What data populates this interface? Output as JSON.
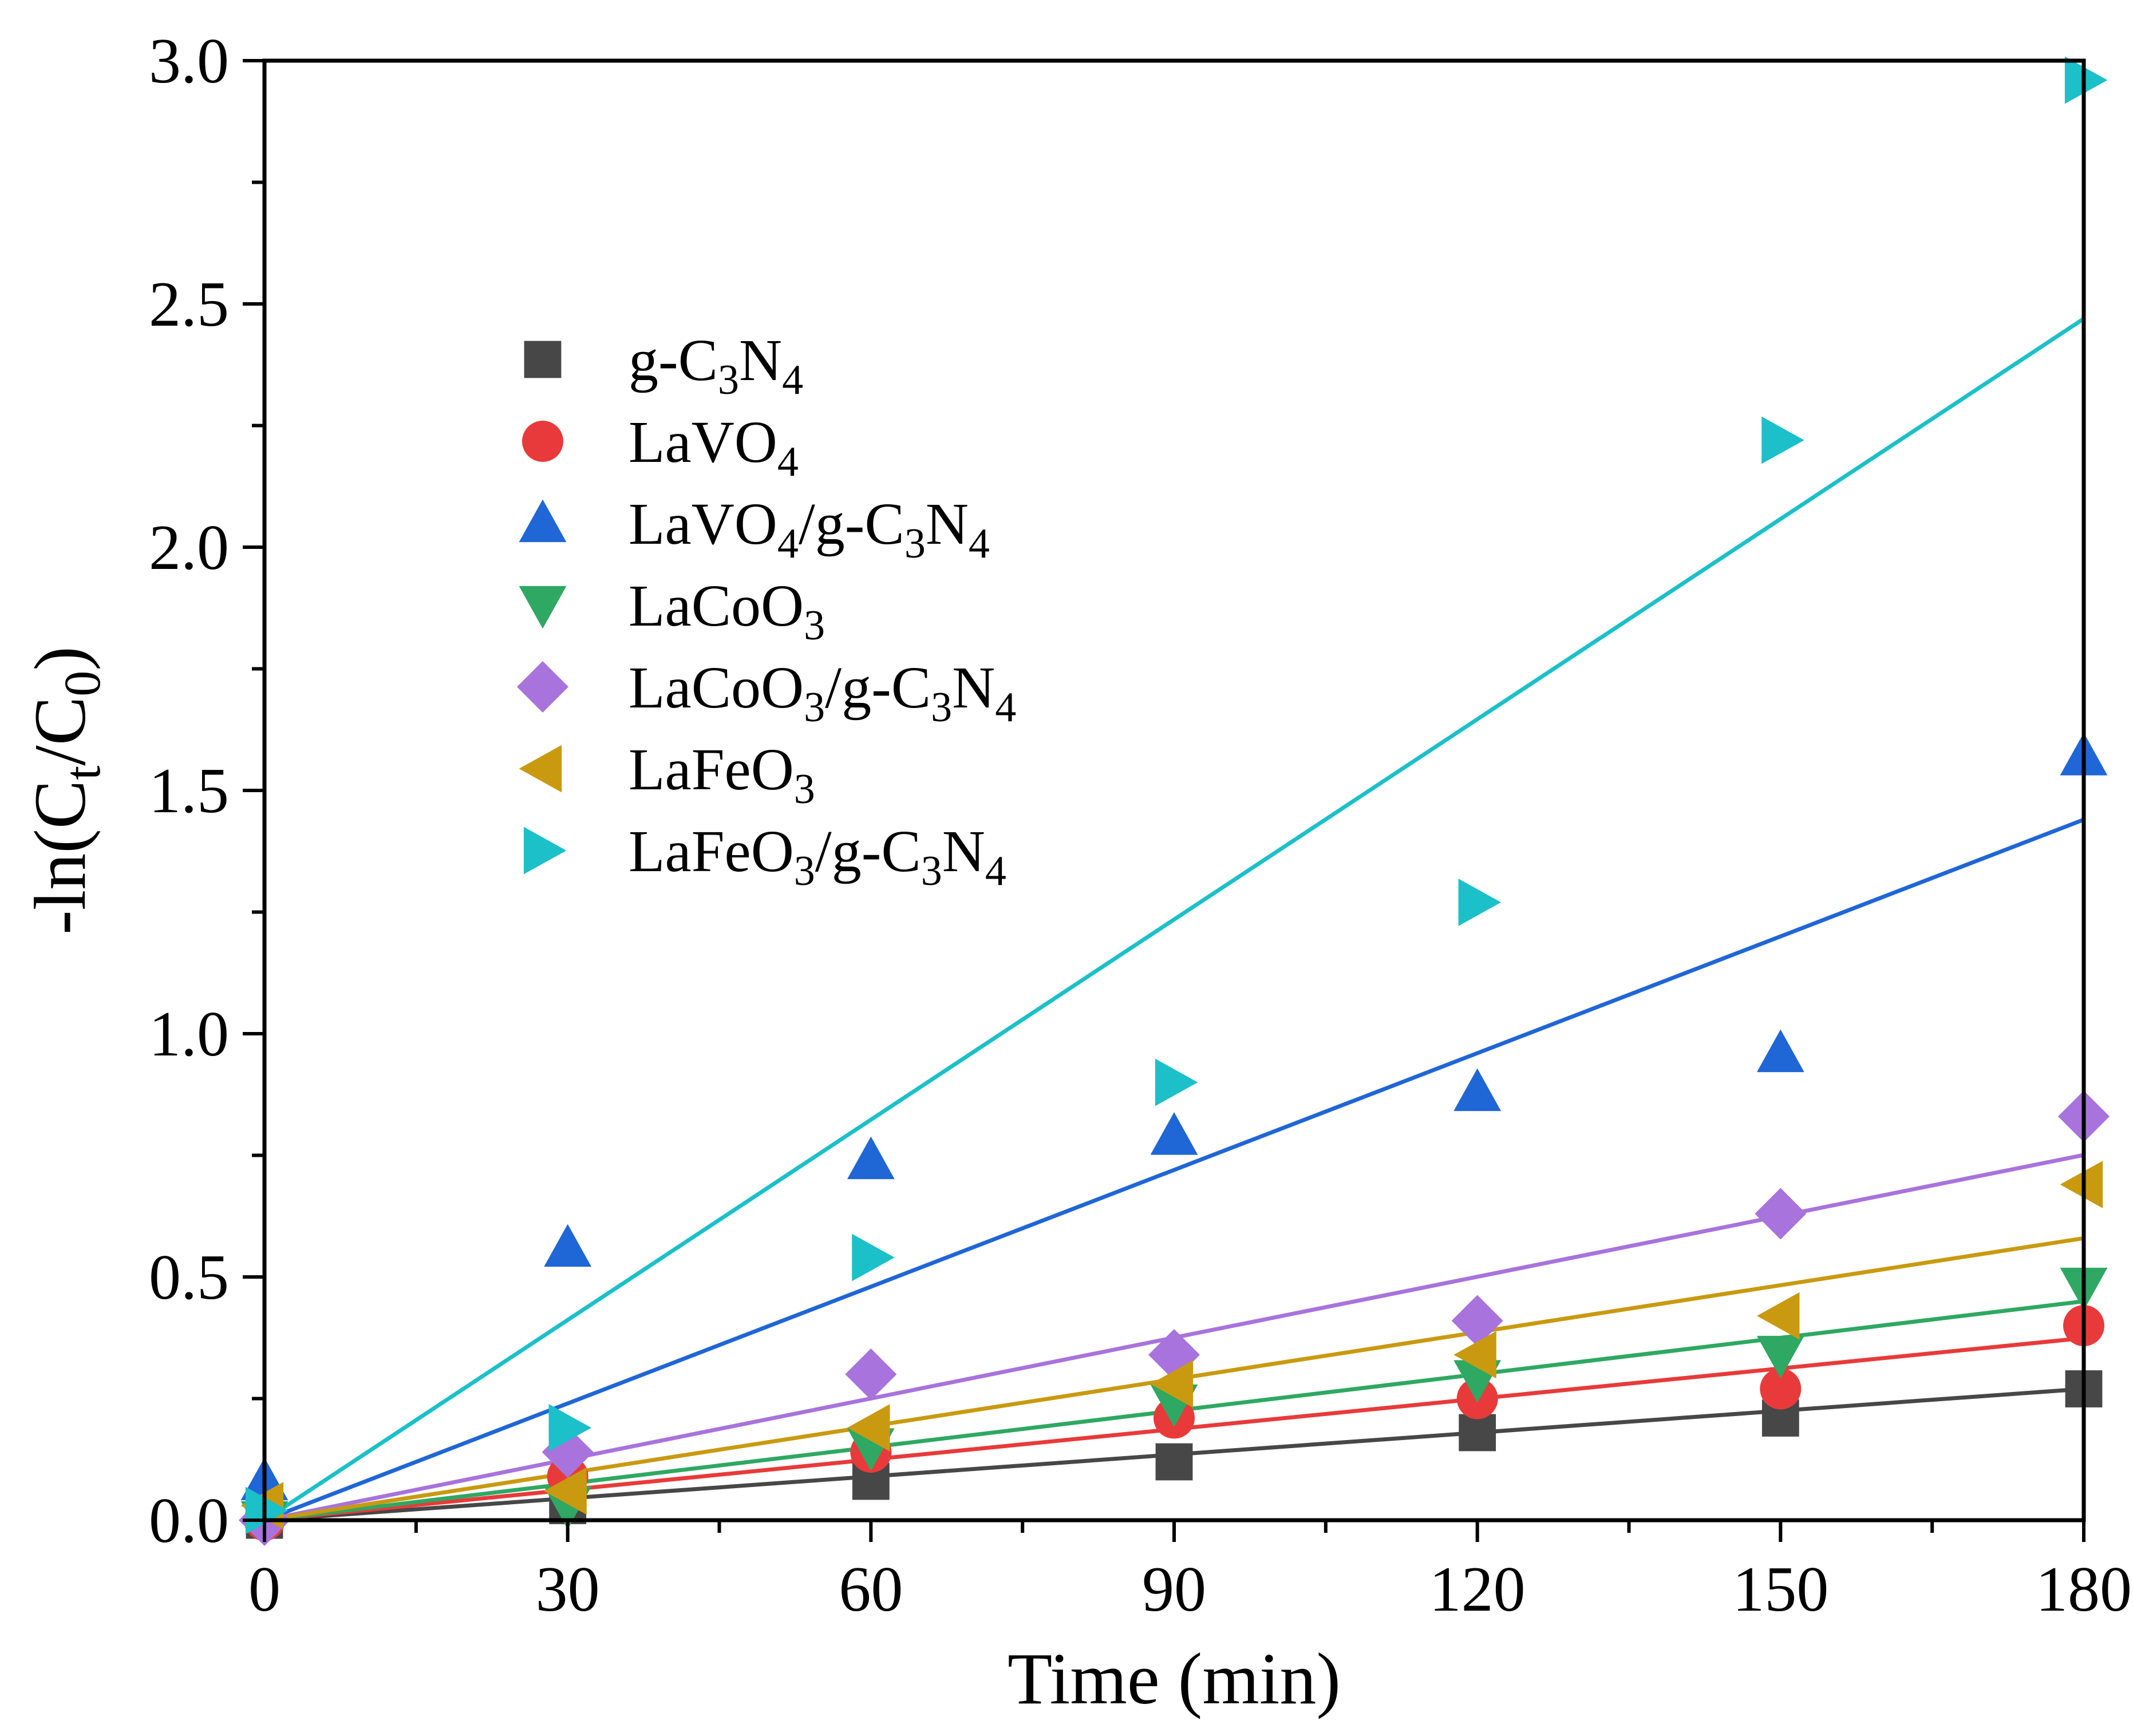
{
  "chart_data": {
    "type": "scatter",
    "xlabel": "Time (min)",
    "ylabel": "-ln(C_t/C_0)",
    "xlim": [
      0,
      180
    ],
    "ylim": [
      0,
      3.0
    ],
    "xticks": [
      0,
      30,
      60,
      90,
      120,
      150,
      180
    ],
    "xtick_labels": [
      "0",
      "30",
      "60",
      "90",
      "120",
      "150",
      "180"
    ],
    "yticks": [
      0,
      0.5,
      1.0,
      1.5,
      2.0,
      2.5,
      3.0
    ],
    "ytick_labels": [
      "0.0",
      "0.5",
      "1.0",
      "1.5",
      "2.0",
      "2.5",
      "3.0"
    ],
    "grid": false,
    "legend_position": "upper-left",
    "x": [
      0,
      30,
      60,
      90,
      120,
      150,
      180
    ],
    "series": [
      {
        "name": "g-C3N4",
        "label_parts": [
          [
            "g-C",
            ""
          ],
          [
            "3",
            "sub"
          ],
          [
            "N",
            ""
          ],
          [
            "4",
            "sub"
          ]
        ],
        "marker": "square",
        "color": "#474747",
        "values": [
          0.0,
          0.03,
          0.08,
          0.12,
          0.18,
          0.21,
          0.27
        ],
        "fit_slope": 0.0015
      },
      {
        "name": "LaVO4",
        "label_parts": [
          [
            "LaVO",
            ""
          ],
          [
            "4",
            "sub"
          ]
        ],
        "marker": "circle",
        "color": "#e83a3a",
        "values": [
          0.0,
          0.09,
          0.14,
          0.21,
          0.25,
          0.27,
          0.4
        ],
        "fit_slope": 0.00208
      },
      {
        "name": "LaVO4/g-C3N4",
        "label_parts": [
          [
            "LaVO",
            ""
          ],
          [
            "4",
            "sub"
          ],
          [
            "/g-C",
            ""
          ],
          [
            "3",
            "sub"
          ],
          [
            "N",
            ""
          ],
          [
            "4",
            "sub"
          ]
        ],
        "marker": "triangle-up",
        "color": "#1f66d6",
        "values": [
          0.08,
          0.56,
          0.74,
          0.79,
          0.88,
          0.96,
          1.57
        ],
        "fit_slope": 0.008
      },
      {
        "name": "LaCoO3",
        "label_parts": [
          [
            "LaCoO",
            ""
          ],
          [
            "3",
            "sub"
          ]
        ],
        "marker": "triangle-down",
        "color": "#2ea862",
        "values": [
          0.0,
          0.03,
          0.15,
          0.24,
          0.29,
          0.34,
          0.48
        ],
        "fit_slope": 0.0025
      },
      {
        "name": "LaCoO3/g-C3N4",
        "label_parts": [
          [
            "LaCoO",
            ""
          ],
          [
            "3",
            "sub"
          ],
          [
            "/g-C",
            ""
          ],
          [
            "3",
            "sub"
          ],
          [
            "N",
            ""
          ],
          [
            "4",
            "sub"
          ]
        ],
        "marker": "diamond",
        "color": "#a873dc",
        "values": [
          0.0,
          0.14,
          0.3,
          0.34,
          0.41,
          0.63,
          0.83
        ],
        "fit_slope": 0.00417
      },
      {
        "name": "LaFeO3",
        "label_parts": [
          [
            "LaFeO",
            ""
          ],
          [
            "3",
            "sub"
          ]
        ],
        "marker": "triangle-left",
        "color": "#c99a10",
        "values": [
          0.03,
          0.06,
          0.19,
          0.28,
          0.34,
          0.42,
          0.69
        ],
        "fit_slope": 0.00322
      },
      {
        "name": "LaFeO3/g-C3N4",
        "label_parts": [
          [
            "LaFeO",
            ""
          ],
          [
            "3",
            "sub"
          ],
          [
            "/g-C",
            ""
          ],
          [
            "3",
            "sub"
          ],
          [
            "N",
            ""
          ],
          [
            "4",
            "sub"
          ]
        ],
        "marker": "triangle-right",
        "color": "#1bc0c9",
        "values": [
          0.02,
          0.19,
          0.54,
          0.9,
          1.27,
          2.22,
          2.96
        ],
        "fit_slope": 0.01372
      }
    ]
  }
}
